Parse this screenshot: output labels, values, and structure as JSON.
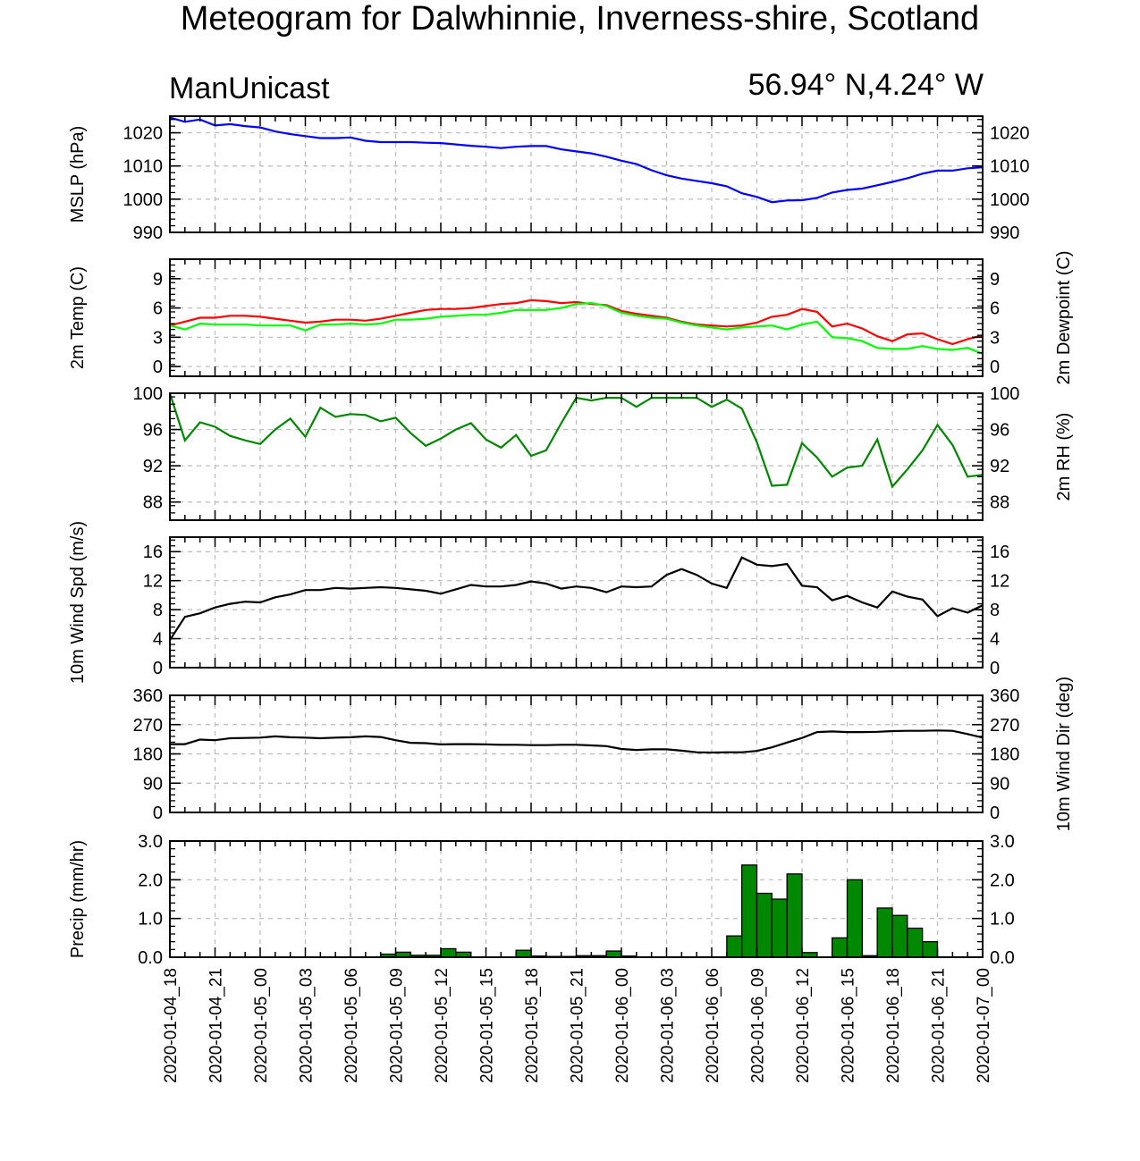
{
  "title": "Meteogram for Dalwhinnie, Inverness-shire, Scotland",
  "model_label": "ManUnicast",
  "location_label": "56.94° N,4.24° W",
  "colors": {
    "mslp": "#0000ff",
    "temp": "#ff0000",
    "dewpoint": "#00ff00",
    "rh": "#008800",
    "wind_speed": "#000000",
    "wind_dir": "#000000",
    "precip_fill": "#008800",
    "grid": "#bbbbbb"
  },
  "x_tick_labels": [
    "2020-01-04_18",
    "2020-01-04_21",
    "2020-01-05_00",
    "2020-01-05_03",
    "2020-01-05_06",
    "2020-01-05_09",
    "2020-01-05_12",
    "2020-01-05_15",
    "2020-01-05_18",
    "2020-01-05_21",
    "2020-01-06_00",
    "2020-01-06_03",
    "2020-01-06_06",
    "2020-01-06_09",
    "2020-01-06_12",
    "2020-01-06_15",
    "2020-01-06_18",
    "2020-01-06_21",
    "2020-01-07_00"
  ],
  "chart_data": [
    {
      "type": "line",
      "name": "mslp",
      "ylabel_left": "MSLP (hPa)",
      "ylabel_right": "",
      "ylim": [
        990,
        1025
      ],
      "yticks": [
        990,
        1000,
        1010,
        1020
      ],
      "ytick_labels": [
        "990",
        "1000",
        "1010",
        "1020"
      ],
      "x_range_hours": [
        0,
        54
      ],
      "grid": true,
      "series": [
        {
          "color_key": "mslp",
          "x": [
            0,
            1,
            2,
            3,
            4,
            5,
            6,
            7,
            8,
            9,
            10,
            11,
            12,
            13,
            14,
            15,
            16,
            17,
            18,
            19,
            20,
            21,
            22,
            23,
            24,
            25,
            26,
            27,
            28,
            29,
            30,
            31,
            32,
            33,
            34,
            35,
            36,
            37,
            38,
            39,
            40,
            41,
            42,
            43,
            44,
            45,
            46,
            47,
            48,
            49,
            50,
            51,
            52,
            53,
            54
          ],
          "values": [
            1024.6,
            1023.3,
            1024.0,
            1022.2,
            1022.6,
            1022.0,
            1021.6,
            1020.4,
            1019.6,
            1019.0,
            1018.4,
            1018.4,
            1018.6,
            1017.6,
            1017.2,
            1017.2,
            1017.2,
            1017.0,
            1016.9,
            1016.5,
            1016.1,
            1015.8,
            1015.4,
            1015.8,
            1016.0,
            1016.0,
            1015.0,
            1014.4,
            1013.8,
            1012.8,
            1011.6,
            1010.6,
            1008.7,
            1007.2,
            1006.2,
            1005.5,
            1004.8,
            1003.9,
            1001.8,
            1000.7,
            999.1,
            999.6,
            999.7,
            1000.4,
            1002.0,
            1002.8,
            1003.2,
            1004.2,
            1005.2,
            1006.3,
            1007.7,
            1008.6,
            1008.6,
            1009.3,
            1009.6
          ]
        }
      ]
    },
    {
      "type": "line",
      "name": "temp_dewpoint",
      "ylabel_left": "2m Temp (C)",
      "ylabel_right": "2m Dewpoint (C)",
      "ylim": [
        -1,
        11
      ],
      "yticks": [
        0,
        3,
        6,
        9
      ],
      "ytick_labels": [
        "0",
        "3",
        "6",
        "9"
      ],
      "x_range_hours": [
        0,
        54
      ],
      "grid": true,
      "series": [
        {
          "color_key": "temp",
          "x": [
            0,
            1,
            2,
            3,
            4,
            5,
            6,
            7,
            8,
            9,
            10,
            11,
            12,
            13,
            14,
            15,
            16,
            17,
            18,
            19,
            20,
            21,
            22,
            23,
            24,
            25,
            26,
            27,
            28,
            29,
            30,
            31,
            32,
            33,
            34,
            35,
            36,
            37,
            38,
            39,
            40,
            41,
            42,
            43,
            44,
            45,
            46,
            47,
            48,
            49,
            50,
            51,
            52,
            53,
            54
          ],
          "values": [
            4.2,
            4.6,
            5.0,
            5.0,
            5.2,
            5.2,
            5.1,
            4.9,
            4.7,
            4.5,
            4.6,
            4.8,
            4.8,
            4.7,
            4.9,
            5.2,
            5.5,
            5.8,
            5.9,
            5.9,
            6.0,
            6.2,
            6.4,
            6.5,
            6.8,
            6.7,
            6.5,
            6.6,
            6.4,
            6.3,
            5.7,
            5.4,
            5.2,
            5.0,
            4.6,
            4.3,
            4.2,
            4.1,
            4.2,
            4.5,
            5.1,
            5.3,
            5.9,
            5.6,
            4.1,
            4.4,
            3.9,
            3.1,
            2.6,
            3.3,
            3.4,
            2.8,
            2.3,
            2.8,
            3.2
          ]
        },
        {
          "color_key": "dewpoint",
          "x": [
            0,
            1,
            2,
            3,
            4,
            5,
            6,
            7,
            8,
            9,
            10,
            11,
            12,
            13,
            14,
            15,
            16,
            17,
            18,
            19,
            20,
            21,
            22,
            23,
            24,
            25,
            26,
            27,
            28,
            29,
            30,
            31,
            32,
            33,
            34,
            35,
            36,
            37,
            38,
            39,
            40,
            41,
            42,
            43,
            44,
            45,
            46,
            47,
            48,
            49,
            50,
            51,
            52,
            53,
            54
          ],
          "values": [
            4.2,
            3.8,
            4.4,
            4.3,
            4.3,
            4.3,
            4.2,
            4.2,
            4.2,
            3.7,
            4.3,
            4.3,
            4.4,
            4.3,
            4.4,
            4.8,
            4.8,
            4.9,
            5.1,
            5.2,
            5.3,
            5.3,
            5.5,
            5.8,
            5.8,
            5.8,
            6.0,
            6.4,
            6.5,
            6.2,
            5.5,
            5.2,
            5.0,
            4.9,
            4.5,
            4.2,
            4.0,
            3.8,
            4.0,
            4.1,
            4.2,
            3.8,
            4.3,
            4.6,
            3.0,
            2.9,
            2.6,
            1.9,
            1.8,
            1.8,
            2.1,
            1.8,
            1.7,
            1.9,
            1.3
          ]
        }
      ]
    },
    {
      "type": "line",
      "name": "rh",
      "ylabel_left": "",
      "ylabel_right": "2m RH (%)",
      "ylim": [
        86,
        100
      ],
      "yticks": [
        88,
        92,
        96,
        100
      ],
      "ytick_labels": [
        "88",
        "92",
        "96",
        "100"
      ],
      "x_range_hours": [
        0,
        54
      ],
      "grid": true,
      "series": [
        {
          "color_key": "rh",
          "x": [
            0,
            1,
            2,
            3,
            4,
            5,
            6,
            7,
            8,
            9,
            10,
            11,
            12,
            13,
            14,
            15,
            16,
            17,
            18,
            19,
            20,
            21,
            22,
            23,
            24,
            25,
            26,
            27,
            28,
            29,
            30,
            31,
            32,
            33,
            34,
            35,
            36,
            37,
            38,
            39,
            40,
            41,
            42,
            43,
            44,
            45,
            46,
            47,
            48,
            49,
            50,
            51,
            52,
            53,
            54
          ],
          "values": [
            100,
            94.8,
            96.8,
            96.3,
            95.3,
            94.8,
            94.4,
            96.0,
            97.2,
            95.2,
            98.4,
            97.4,
            97.7,
            97.6,
            96.9,
            97.3,
            95.6,
            94.2,
            95.0,
            96.0,
            96.7,
            94.9,
            94.0,
            95.4,
            93.1,
            93.7,
            96.7,
            99.5,
            99.2,
            99.5,
            99.5,
            98.5,
            99.5,
            99.5,
            99.5,
            99.5,
            98.5,
            99.3,
            98.3,
            94.6,
            89.8,
            89.9,
            94.5,
            92.9,
            90.8,
            91.8,
            92.0,
            94.9,
            89.7,
            91.6,
            93.7,
            96.5,
            94.3,
            90.8,
            91.0
          ]
        }
      ]
    },
    {
      "type": "line",
      "name": "wind_speed",
      "ylabel_left": "10m Wind Spd (m/s)",
      "ylabel_right": "",
      "ylim": [
        0,
        18
      ],
      "yticks": [
        0,
        4,
        8,
        12,
        16
      ],
      "ytick_labels": [
        "0",
        "4",
        "8",
        "12",
        "16"
      ],
      "x_range_hours": [
        0,
        54
      ],
      "grid": true,
      "series": [
        {
          "color_key": "wind_speed",
          "x": [
            0,
            1,
            2,
            3,
            4,
            5,
            6,
            7,
            8,
            9,
            10,
            11,
            12,
            13,
            14,
            15,
            16,
            17,
            18,
            19,
            20,
            21,
            22,
            23,
            24,
            25,
            26,
            27,
            28,
            29,
            30,
            31,
            32,
            33,
            34,
            35,
            36,
            37,
            38,
            39,
            40,
            41,
            42,
            43,
            44,
            45,
            46,
            47,
            48,
            49,
            50,
            51,
            52,
            53,
            54
          ],
          "values": [
            3.8,
            7.0,
            7.5,
            8.3,
            8.8,
            9.1,
            9.0,
            9.7,
            10.1,
            10.7,
            10.7,
            11.0,
            10.9,
            11.0,
            11.1,
            11.0,
            10.8,
            10.6,
            10.2,
            10.8,
            11.4,
            11.2,
            11.2,
            11.4,
            11.9,
            11.6,
            10.9,
            11.2,
            11.0,
            10.4,
            11.2,
            11.1,
            11.2,
            12.8,
            13.6,
            12.8,
            11.6,
            11.0,
            15.2,
            14.2,
            14.0,
            14.3,
            11.3,
            11.1,
            9.3,
            9.9,
            9.0,
            8.3,
            10.5,
            9.8,
            9.4,
            7.1,
            8.2,
            7.6,
            8.6
          ]
        }
      ]
    },
    {
      "type": "line",
      "name": "wind_dir",
      "ylabel_left": "",
      "ylabel_right": "10m Wind Dir (deg)",
      "ylim": [
        0,
        360
      ],
      "yticks": [
        0,
        90,
        180,
        270,
        360
      ],
      "ytick_labels": [
        "0",
        "90",
        "180",
        "270",
        "360"
      ],
      "x_range_hours": [
        0,
        54
      ],
      "grid": true,
      "series": [
        {
          "color_key": "wind_dir",
          "x": [
            0,
            1,
            2,
            3,
            4,
            5,
            6,
            7,
            8,
            9,
            10,
            11,
            12,
            13,
            14,
            15,
            16,
            17,
            18,
            19,
            20,
            21,
            22,
            23,
            24,
            25,
            26,
            27,
            28,
            29,
            30,
            31,
            32,
            33,
            34,
            35,
            36,
            37,
            38,
            39,
            40,
            41,
            42,
            43,
            44,
            45,
            46,
            47,
            48,
            49,
            50,
            51,
            52,
            53,
            54
          ],
          "values": [
            210,
            210,
            224,
            222,
            228,
            229,
            230,
            234,
            231,
            230,
            228,
            230,
            231,
            234,
            232,
            222,
            214,
            213,
            209,
            210,
            210,
            209,
            208,
            208,
            207,
            207,
            208,
            208,
            206,
            204,
            195,
            192,
            194,
            194,
            190,
            185,
            184,
            185,
            185,
            189,
            200,
            215,
            229,
            247,
            249,
            247,
            247,
            248,
            250,
            251,
            251,
            252,
            251,
            241,
            230
          ]
        }
      ]
    },
    {
      "type": "bar",
      "name": "precip",
      "ylabel_left": "Precip (mm/hr)",
      "ylabel_right": "",
      "ylim": [
        0,
        3.0
      ],
      "yticks": [
        0,
        1,
        2,
        3
      ],
      "ytick_labels": [
        "0.0",
        "1.0",
        "2.0",
        "3.0"
      ],
      "x_range_hours": [
        0,
        54
      ],
      "grid": true,
      "series": [
        {
          "color_key": "precip_fill",
          "x": [
            0,
            1,
            2,
            3,
            4,
            5,
            6,
            7,
            8,
            9,
            10,
            11,
            12,
            13,
            14,
            15,
            16,
            17,
            18,
            19,
            20,
            21,
            22,
            23,
            24,
            25,
            26,
            27,
            28,
            29,
            30,
            31,
            32,
            33,
            34,
            35,
            36,
            37,
            38,
            39,
            40,
            41,
            42,
            43,
            44,
            45,
            46,
            47,
            48,
            49,
            50,
            51,
            52,
            53,
            54
          ],
          "values": [
            0,
            0,
            0,
            0,
            0,
            0,
            0,
            0,
            0,
            0,
            0,
            0,
            0,
            0,
            0,
            0.08,
            0.13,
            0.05,
            0.05,
            0.22,
            0.13,
            0,
            0,
            0,
            0.18,
            0.03,
            0.02,
            0.02,
            0.04,
            0.04,
            0.16,
            0.03,
            0.01,
            0.01,
            0.01,
            0.01,
            0.01,
            0.01,
            0.55,
            2.38,
            1.65,
            1.5,
            2.15,
            0.12,
            0,
            0.5,
            2.0,
            0.04,
            1.27,
            1.08,
            0.75,
            0.4,
            0.01,
            0.01,
            0.01
          ]
        }
      ]
    }
  ]
}
